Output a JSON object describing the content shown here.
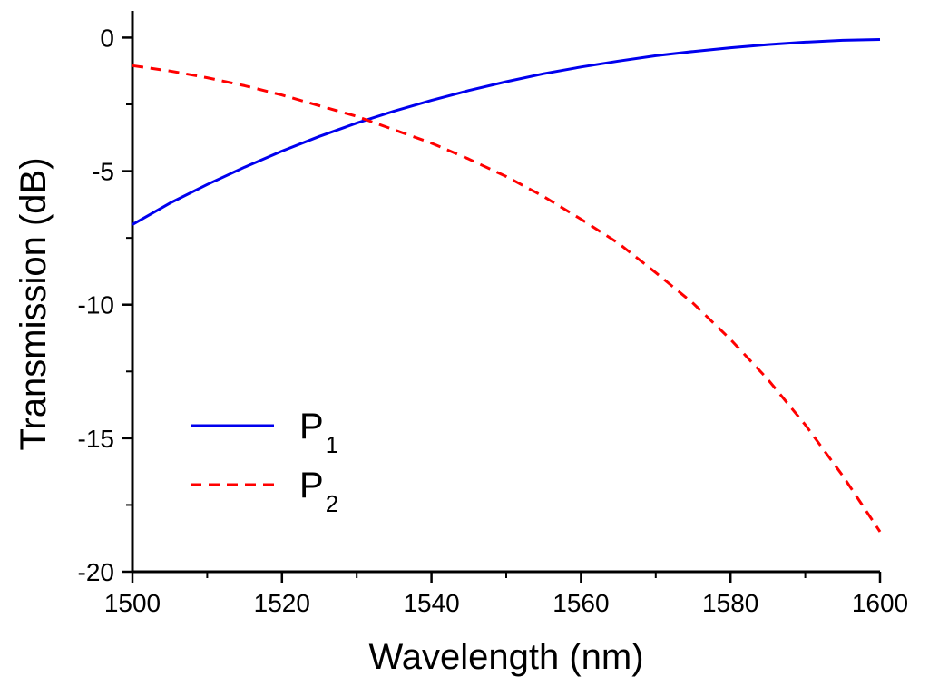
{
  "chart_data": {
    "type": "line",
    "title": "",
    "xlabel": "Wavelength (nm)",
    "ylabel": "Transmission (dB)",
    "xlim": [
      1500,
      1600
    ],
    "ylim": [
      -20,
      1
    ],
    "xticks": [
      1500,
      1520,
      1540,
      1560,
      1580,
      1600
    ],
    "yticks": [
      0,
      -5,
      -10,
      -15,
      -20
    ],
    "xtick_labels": [
      "1500",
      "1520",
      "1540",
      "1560",
      "1580",
      "1600"
    ],
    "ytick_labels": [
      "0",
      "-5",
      "-10",
      "-15",
      "-20"
    ],
    "grid": false,
    "legend_position": "bottom-left",
    "series": [
      {
        "name": "P1",
        "base": "P",
        "sub": "1",
        "color": "#0000ee",
        "style": "solid",
        "x": [
          1500,
          1505,
          1510,
          1515,
          1520,
          1525,
          1530,
          1535,
          1540,
          1545,
          1550,
          1555,
          1560,
          1565,
          1570,
          1575,
          1580,
          1585,
          1590,
          1595,
          1600
        ],
        "y": [
          -7.0,
          -6.2,
          -5.5,
          -4.85,
          -4.25,
          -3.7,
          -3.2,
          -2.75,
          -2.35,
          -1.98,
          -1.65,
          -1.35,
          -1.1,
          -0.88,
          -0.68,
          -0.52,
          -0.38,
          -0.26,
          -0.17,
          -0.1,
          -0.07
        ]
      },
      {
        "name": "P2",
        "base": "P",
        "sub": "2",
        "color": "#ff0000",
        "style": "dashed",
        "x": [
          1500,
          1505,
          1510,
          1515,
          1520,
          1525,
          1530,
          1535,
          1540,
          1545,
          1550,
          1555,
          1560,
          1565,
          1570,
          1575,
          1580,
          1585,
          1590,
          1595,
          1600
        ],
        "y": [
          -1.05,
          -1.25,
          -1.5,
          -1.8,
          -2.15,
          -2.55,
          -2.95,
          -3.45,
          -3.95,
          -4.55,
          -5.2,
          -5.95,
          -6.8,
          -7.7,
          -8.8,
          -9.95,
          -11.3,
          -12.8,
          -14.5,
          -16.4,
          -18.5
        ]
      }
    ]
  }
}
